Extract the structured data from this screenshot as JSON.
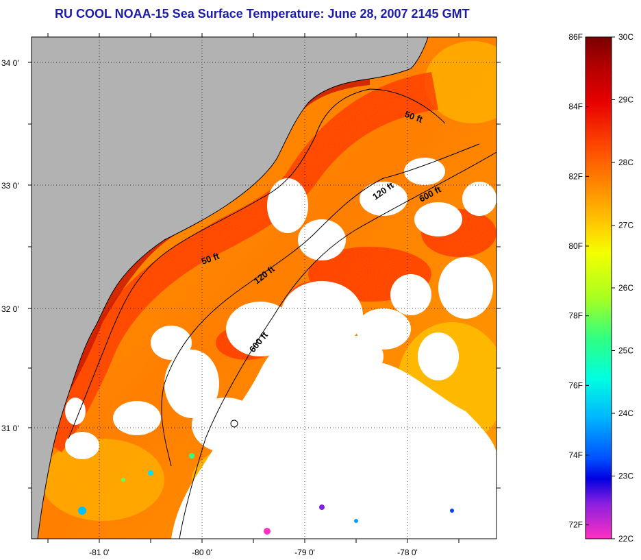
{
  "title": "RU COOL  NOAA-15  Sea Surface Temperature:  June 28, 2007 2145 GMT",
  "map": {
    "lat_ticks": [
      "34 0'",
      "33 0'",
      "32 0'",
      "31 0'"
    ],
    "lon_ticks": [
      "-81 0'",
      "-80 0'",
      "-79 0'",
      "-78 0'"
    ],
    "contours": [
      {
        "label": "50 ft",
        "id": "a"
      },
      {
        "label": "50 ft",
        "id": "b"
      },
      {
        "label": "120 ft",
        "id": "c"
      },
      {
        "label": "120 ft",
        "id": "d"
      },
      {
        "label": "600 ft",
        "id": "e"
      },
      {
        "label": "600 ft",
        "id": "f"
      }
    ],
    "colors": {
      "land": "#b2b2b2",
      "cloud": "#ffffff",
      "coast_hot": "#c40000",
      "shelf": "#ff3a00",
      "offshore": "#ff8a00",
      "cool": "#ffd400"
    }
  },
  "colorbar": {
    "fahrenheit_labels": [
      "86F",
      "84F",
      "82F",
      "80F",
      "78F",
      "76F",
      "74F",
      "72F"
    ],
    "celsius_labels": [
      "30C",
      "29C",
      "28C",
      "27C",
      "26C",
      "25C",
      "24C",
      "23C",
      "22C"
    ],
    "range_c": [
      22,
      30
    ]
  }
}
